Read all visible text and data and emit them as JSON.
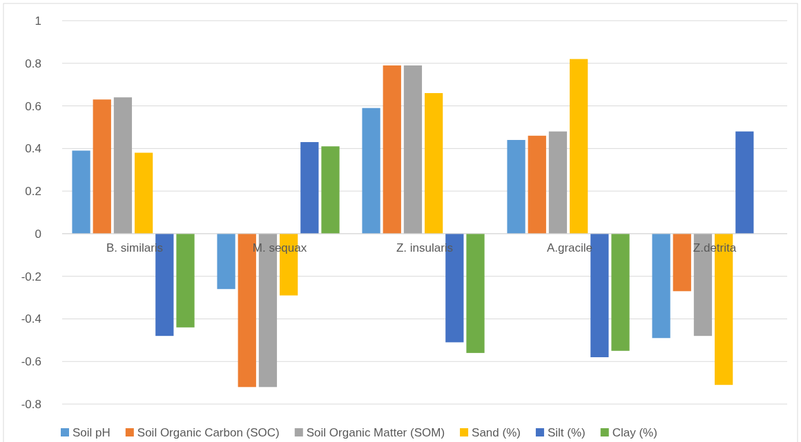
{
  "chart_data": {
    "type": "bar",
    "categories": [
      "B. similaris",
      "M. sequax",
      "Z. insularis",
      "A.gracile",
      "Z.detrita"
    ],
    "series": [
      {
        "name": "Soil pH",
        "color": "#5b9bd5",
        "values": [
          0.39,
          -0.26,
          0.59,
          0.44,
          -0.49
        ]
      },
      {
        "name": "Soil Organic Carbon (SOC)",
        "color": "#ed7d31",
        "values": [
          0.63,
          -0.72,
          0.79,
          0.46,
          -0.27
        ]
      },
      {
        "name": "Soil Organic Matter (SOM)",
        "color": "#a5a5a5",
        "values": [
          0.64,
          -0.72,
          0.79,
          0.48,
          -0.48
        ]
      },
      {
        "name": "Sand (%)",
        "color": "#ffc000",
        "values": [
          0.38,
          -0.29,
          0.66,
          0.82,
          -0.71
        ]
      },
      {
        "name": "Silt (%)",
        "color": "#4472c4",
        "values": [
          -0.48,
          0.43,
          -0.51,
          -0.58,
          0.48
        ]
      },
      {
        "name": "Clay (%)",
        "color": "#70ad47",
        "values": [
          -0.44,
          0.41,
          -0.56,
          -0.55,
          null
        ]
      }
    ],
    "ylim": [
      -0.8,
      1
    ],
    "yticks": [
      -0.8,
      -0.6,
      -0.4,
      -0.2,
      0,
      0.2,
      0.4,
      0.6,
      0.8,
      1
    ],
    "grid": "y",
    "legend": "bottom"
  }
}
